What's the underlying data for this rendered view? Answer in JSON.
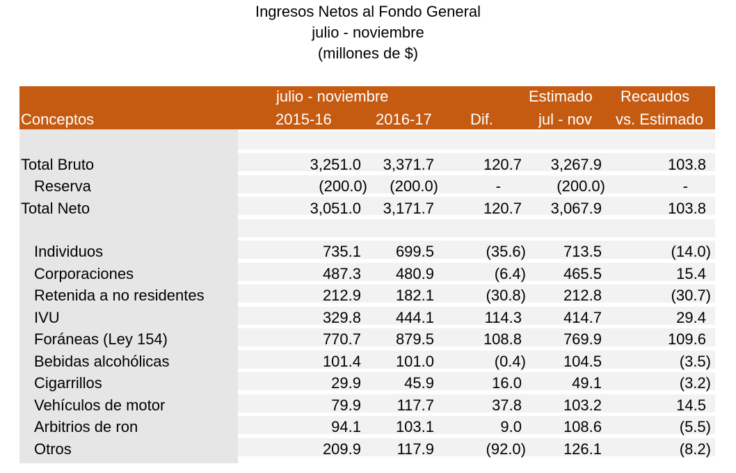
{
  "title": {
    "line1": "Ingresos Netos al Fondo General",
    "line2": "julio - noviembre",
    "line3": "(millones de $)"
  },
  "header": {
    "group_label": "julio - noviembre",
    "col_conceptos": "Conceptos",
    "col_2015": "2015-16",
    "col_2016": "2016-17",
    "col_dif": "Dif.",
    "col_est_top": "Estimado",
    "col_est_bottom": "jul - nov",
    "col_rec_top": "Recaudos",
    "col_rec_bottom": "vs. Estimado"
  },
  "rows": [
    {
      "concept": "Total Bruto",
      "y2015": "3,251.0",
      "y2016": "3,371.7",
      "dif": "120.7",
      "est": "3,267.9",
      "rec": "103.8"
    },
    {
      "concept": "Reserva",
      "y2015": "(200.0)",
      "y2016": "(200.0)",
      "dif": "-",
      "est": "(200.0)",
      "rec": "-"
    },
    {
      "concept": "Total Neto",
      "y2015": "3,051.0",
      "y2016": "3,171.7",
      "dif": "120.7",
      "est": "3,067.9",
      "rec": "103.8"
    },
    {
      "concept": "Individuos",
      "y2015": "735.1",
      "y2016": "699.5",
      "dif": "(35.6)",
      "est": "713.5",
      "rec": "(14.0)"
    },
    {
      "concept": "Corporaciones",
      "y2015": "487.3",
      "y2016": "480.9",
      "dif": "(6.4)",
      "est": "465.5",
      "rec": "15.4"
    },
    {
      "concept": "Retenida a no residentes",
      "y2015": "212.9",
      "y2016": "182.1",
      "dif": "(30.8)",
      "est": "212.8",
      "rec": "(30.7)"
    },
    {
      "concept": "IVU",
      "y2015": "329.8",
      "y2016": "444.1",
      "dif": "114.3",
      "est": "414.7",
      "rec": "29.4"
    },
    {
      "concept": "Foráneas (Ley 154)",
      "y2015": "770.7",
      "y2016": "879.5",
      "dif": "108.8",
      "est": "769.9",
      "rec": "109.6"
    },
    {
      "concept": "Bebidas alcohólicas",
      "y2015": "101.4",
      "y2016": "101.0",
      "dif": "(0.4)",
      "est": "104.5",
      "rec": "(3.5)"
    },
    {
      "concept": "Cigarrillos",
      "y2015": "29.9",
      "y2016": "45.9",
      "dif": "16.0",
      "est": "49.1",
      "rec": "(3.2)"
    },
    {
      "concept": "Vehículos de motor",
      "y2015": "79.9",
      "y2016": "117.7",
      "dif": "37.8",
      "est": "103.2",
      "rec": "14.5"
    },
    {
      "concept": "Arbitrios de ron",
      "y2015": "94.1",
      "y2016": "103.1",
      "dif": "9.0",
      "est": "108.6",
      "rec": "(5.5)"
    },
    {
      "concept": "Otros",
      "y2015": "209.9",
      "y2016": "117.9",
      "dif": "(92.0)",
      "est": "126.1",
      "rec": "(8.2)"
    }
  ],
  "colors": {
    "header_bg": "#c55a11",
    "header_text": "#ffffff",
    "left_column_bg": "#e6e6e6",
    "band_bg": "#f2f2f2"
  }
}
